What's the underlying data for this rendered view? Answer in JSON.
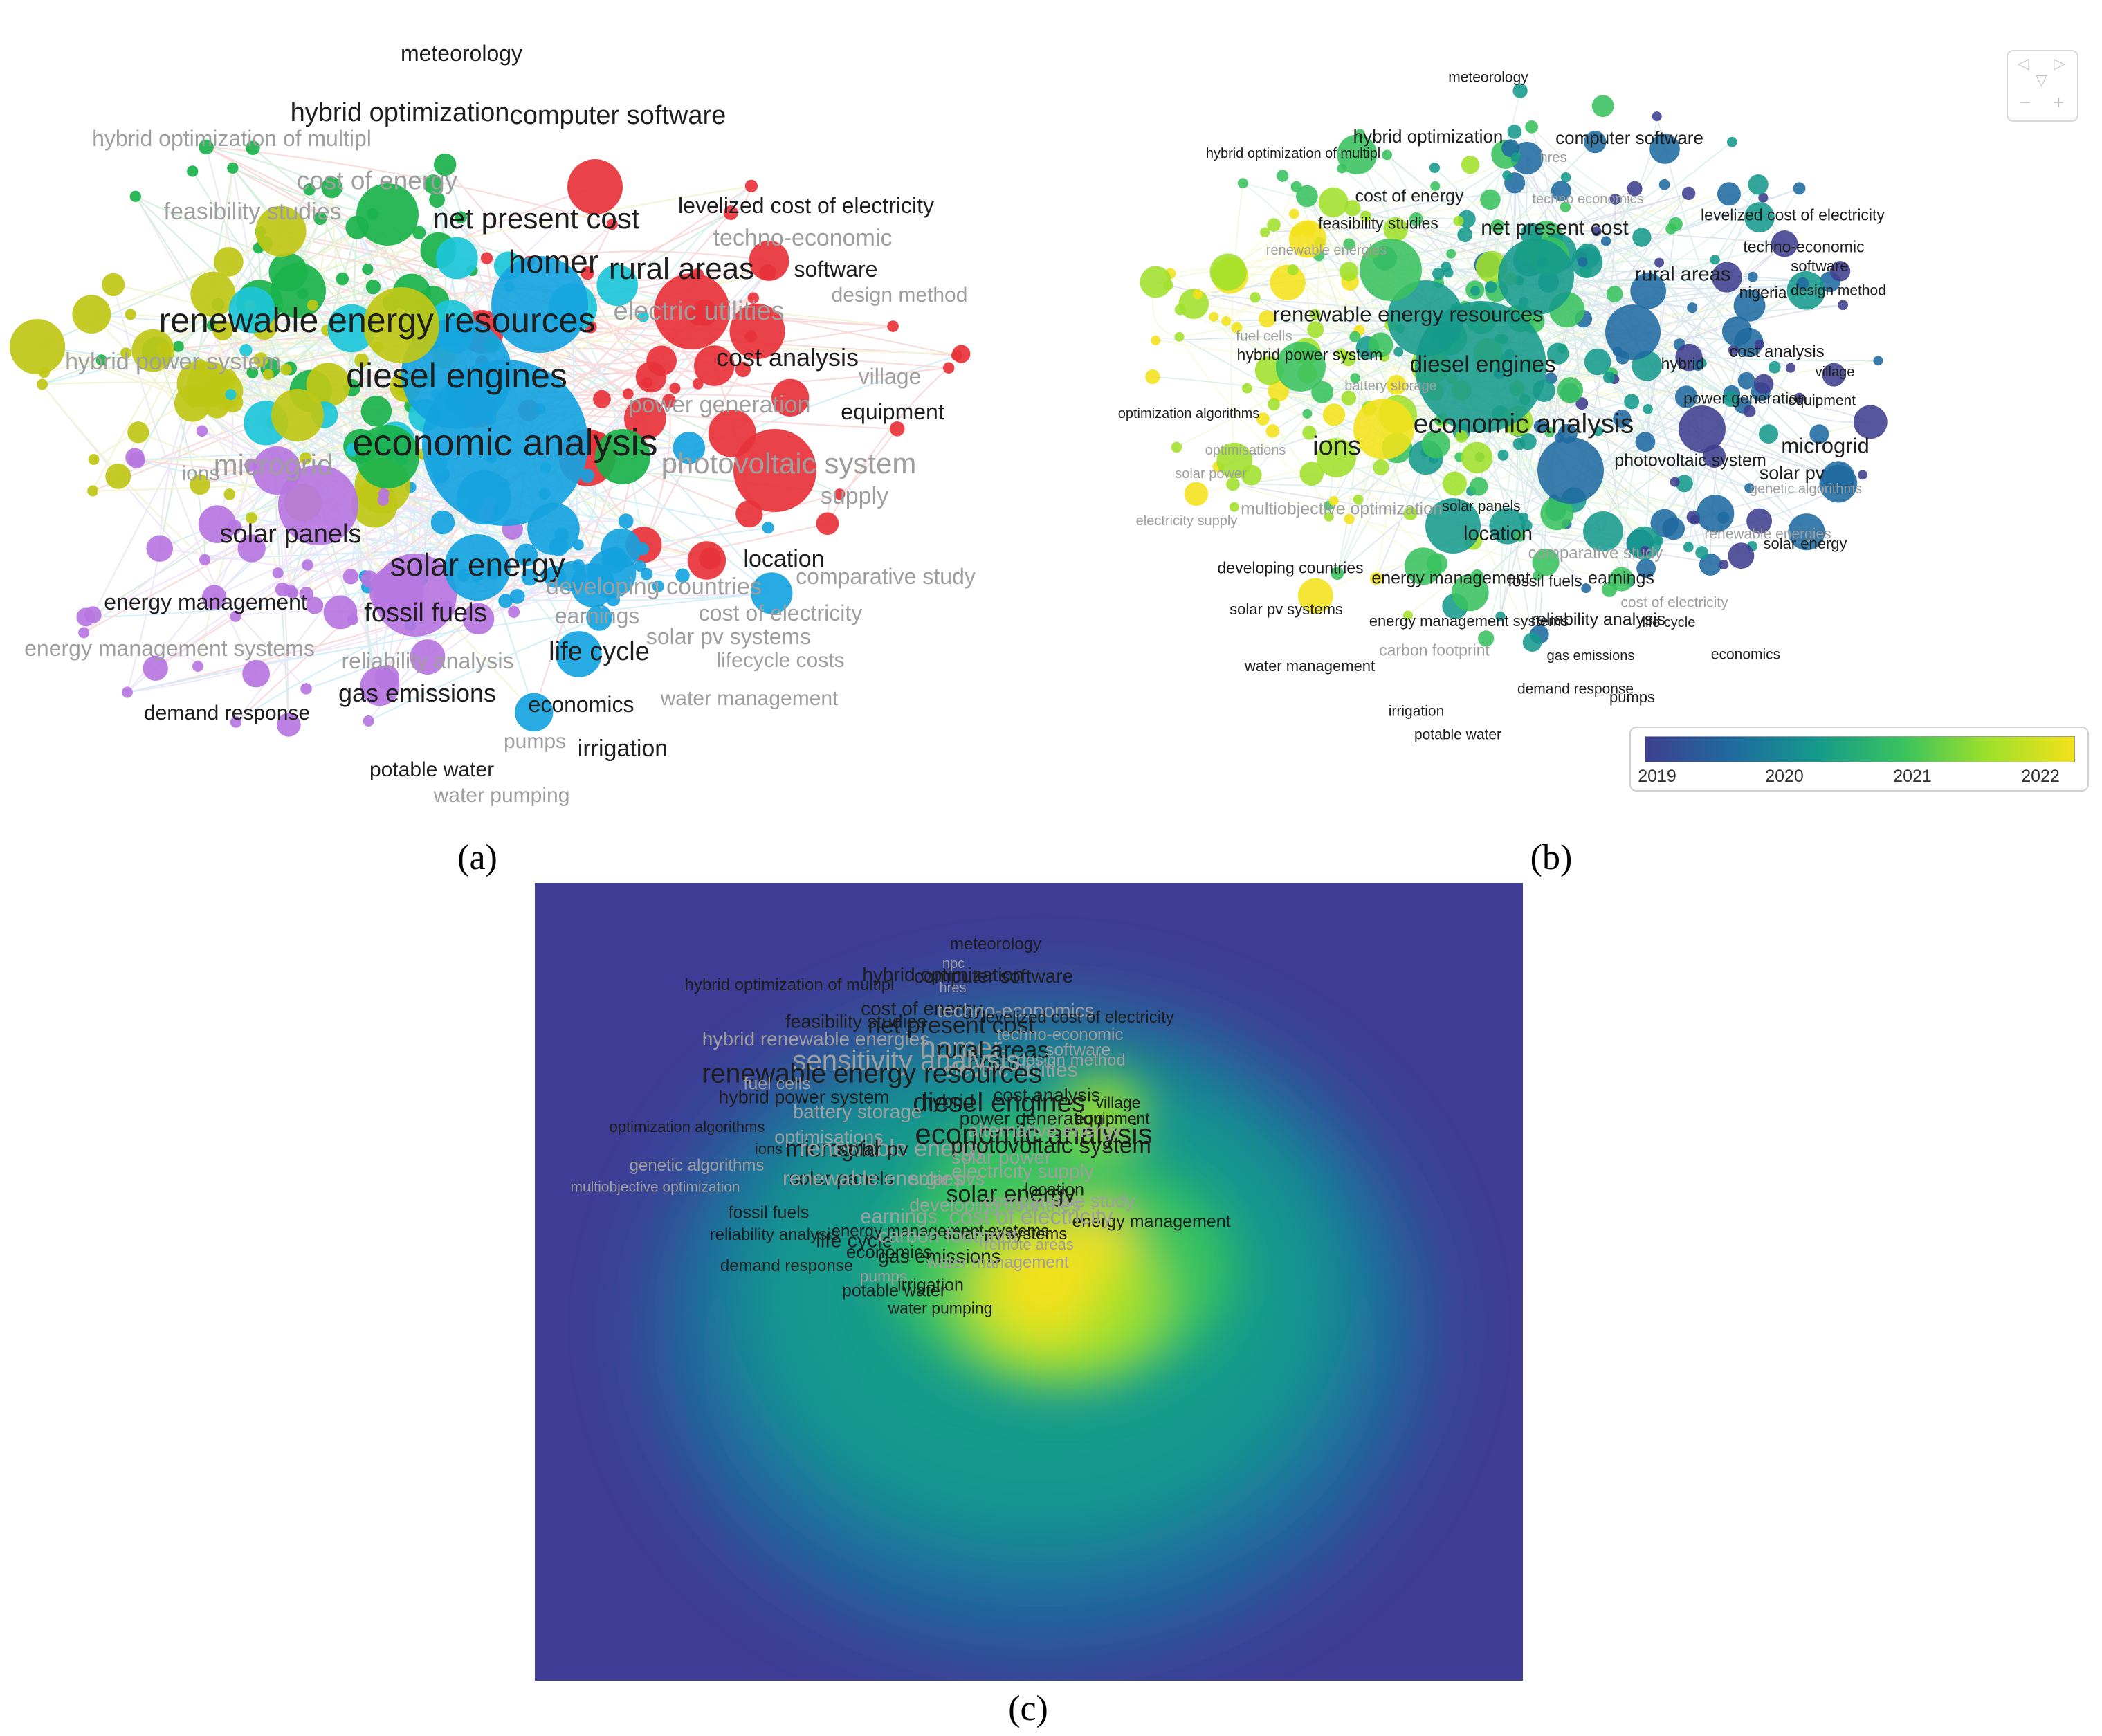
{
  "captions": {
    "a": "(a)",
    "b": "(b)",
    "c": "(c)"
  },
  "colors": {
    "clusters": [
      "#e8323a",
      "#1ab24b",
      "#16a3e0",
      "#bfc716",
      "#b676e0",
      "#1cc6d8"
    ],
    "overlay_scale": [
      "#3f3f8f",
      "#1f6aa0",
      "#169a8c",
      "#39c25e",
      "#9fe02a",
      "#f2e11a"
    ],
    "density_bg": "#3f3d95"
  },
  "legend": {
    "ticks": [
      "2019",
      "2020",
      "2021",
      "2022"
    ]
  },
  "zoom_controls": {
    "glyphs": [
      "◁",
      "▷",
      "▽",
      "−",
      "+"
    ]
  },
  "panel_a_labels": [
    {
      "text": "meteorology",
      "faint": false
    },
    {
      "text": "hybrid optimization",
      "faint": false
    },
    {
      "text": "computer software",
      "faint": false
    },
    {
      "text": "hybrid optimization of multipl",
      "faint": true
    },
    {
      "text": "cost of energy",
      "faint": true
    },
    {
      "text": "feasibility studies",
      "faint": true
    },
    {
      "text": "net present cost",
      "faint": false
    },
    {
      "text": "levelized cost of electricity",
      "faint": false
    },
    {
      "text": "techno-economic",
      "faint": true
    },
    {
      "text": "homer",
      "faint": false
    },
    {
      "text": "rural areas",
      "faint": false
    },
    {
      "text": "software",
      "faint": false
    },
    {
      "text": "design method",
      "faint": true
    },
    {
      "text": "renewable energy resources",
      "faint": false
    },
    {
      "text": "electric utilities",
      "faint": true
    },
    {
      "text": "hybrid power system",
      "faint": true
    },
    {
      "text": "diesel engines",
      "faint": false
    },
    {
      "text": "cost analysis",
      "faint": false
    },
    {
      "text": "village",
      "faint": true
    },
    {
      "text": "equipment",
      "faint": false
    },
    {
      "text": "power generation",
      "faint": true
    },
    {
      "text": "economic analysis",
      "faint": false
    },
    {
      "text": "microgrid",
      "faint": true
    },
    {
      "text": "ions",
      "faint": true
    },
    {
      "text": "photovoltaic system",
      "faint": true
    },
    {
      "text": "supply",
      "faint": true
    },
    {
      "text": "solar panels",
      "faint": false
    },
    {
      "text": "solar energy",
      "faint": false
    },
    {
      "text": "location",
      "faint": false
    },
    {
      "text": "comparative study",
      "faint": true
    },
    {
      "text": "developing countries",
      "faint": true
    },
    {
      "text": "energy management",
      "faint": false
    },
    {
      "text": "fossil fuels",
      "faint": false
    },
    {
      "text": "earnings",
      "faint": true
    },
    {
      "text": "cost of electricity",
      "faint": true
    },
    {
      "text": "solar pv systems",
      "faint": true
    },
    {
      "text": "energy management systems",
      "faint": true
    },
    {
      "text": "reliability analysis",
      "faint": true
    },
    {
      "text": "life cycle",
      "faint": false
    },
    {
      "text": "lifecycle costs",
      "faint": true
    },
    {
      "text": "gas emissions",
      "faint": false
    },
    {
      "text": "economics",
      "faint": false
    },
    {
      "text": "water management",
      "faint": true
    },
    {
      "text": "demand response",
      "faint": false
    },
    {
      "text": "pumps",
      "faint": true
    },
    {
      "text": "irrigation",
      "faint": false
    },
    {
      "text": "potable water",
      "faint": false
    },
    {
      "text": "water pumping",
      "faint": true
    }
  ],
  "panel_b_labels": [
    {
      "text": "meteorology",
      "faint": false
    },
    {
      "text": "hybrid optimization",
      "faint": false
    },
    {
      "text": "computer software",
      "faint": false
    },
    {
      "text": "hybrid optimization of multipl",
      "faint": false
    },
    {
      "text": "hres",
      "faint": true
    },
    {
      "text": "cost of energy",
      "faint": false
    },
    {
      "text": "techno economics",
      "faint": true
    },
    {
      "text": "levelized cost of electricity",
      "faint": false
    },
    {
      "text": "feasibility studies",
      "faint": false
    },
    {
      "text": "net present cost",
      "faint": false
    },
    {
      "text": "techno-economic",
      "faint": false
    },
    {
      "text": "renewable energies",
      "faint": true
    },
    {
      "text": "rural areas",
      "faint": false
    },
    {
      "text": "software",
      "faint": false
    },
    {
      "text": "nigeria",
      "faint": false
    },
    {
      "text": "design method",
      "faint": false
    },
    {
      "text": "renewable energy resources",
      "faint": false
    },
    {
      "text": "fuel cells",
      "faint": true
    },
    {
      "text": "hybrid power system",
      "faint": false
    },
    {
      "text": "diesel engines",
      "faint": false
    },
    {
      "text": "hybrid",
      "faint": false
    },
    {
      "text": "cost analysis",
      "faint": false
    },
    {
      "text": "village",
      "faint": false
    },
    {
      "text": "battery storage",
      "faint": true
    },
    {
      "text": "power generation",
      "faint": false
    },
    {
      "text": "equipment",
      "faint": false
    },
    {
      "text": "optimization algorithms",
      "faint": false
    },
    {
      "text": "economic analysis",
      "faint": false
    },
    {
      "text": "optimisations",
      "faint": true
    },
    {
      "text": "ions",
      "faint": false
    },
    {
      "text": "microgrid",
      "faint": false
    },
    {
      "text": "photovoltaic system",
      "faint": false
    },
    {
      "text": "solar pv",
      "faint": false
    },
    {
      "text": "solar power",
      "faint": true
    },
    {
      "text": "genetic algorithms",
      "faint": true
    },
    {
      "text": "electricity supply",
      "faint": true
    },
    {
      "text": "multiobjective optimization",
      "faint": true
    },
    {
      "text": "solar panels",
      "faint": false
    },
    {
      "text": "renewable energies",
      "faint": true
    },
    {
      "text": "location",
      "faint": false
    },
    {
      "text": "solar energy",
      "faint": false
    },
    {
      "text": "comparative study",
      "faint": true
    },
    {
      "text": "developing countries",
      "faint": false
    },
    {
      "text": "energy management",
      "faint": false
    },
    {
      "text": "fossil fuels",
      "faint": false
    },
    {
      "text": "earnings",
      "faint": false
    },
    {
      "text": "cost of electricity",
      "faint": true
    },
    {
      "text": "solar pv systems",
      "faint": false
    },
    {
      "text": "energy management systems",
      "faint": false
    },
    {
      "text": "reliability analysis",
      "faint": false
    },
    {
      "text": "life cycle",
      "faint": false
    },
    {
      "text": "carbon footprint",
      "faint": true
    },
    {
      "text": "gas emissions",
      "faint": false
    },
    {
      "text": "economics",
      "faint": false
    },
    {
      "text": "water management",
      "faint": false
    },
    {
      "text": "demand response",
      "faint": false
    },
    {
      "text": "pumps",
      "faint": false
    },
    {
      "text": "irrigation",
      "faint": false
    },
    {
      "text": "potable water",
      "faint": false
    },
    {
      "text": "water pumping",
      "faint": false
    }
  ],
  "panel_c_labels": [
    {
      "text": "meteorology",
      "faint": false
    },
    {
      "text": "npc",
      "faint": true
    },
    {
      "text": "hybrid optimization",
      "faint": false
    },
    {
      "text": "computer software",
      "faint": false
    },
    {
      "text": "hybrid optimization of multipl",
      "faint": false
    },
    {
      "text": "hres",
      "faint": true
    },
    {
      "text": "cost of energy",
      "faint": false
    },
    {
      "text": "techno-economics",
      "faint": true
    },
    {
      "text": "feasibility studies",
      "faint": false
    },
    {
      "text": "levelized cost of electricity",
      "faint": false
    },
    {
      "text": "net present cost",
      "faint": false
    },
    {
      "text": "hybrid renewable energies",
      "faint": true
    },
    {
      "text": "techno-economic",
      "faint": true
    },
    {
      "text": "homer",
      "faint": true
    },
    {
      "text": "rural areas",
      "faint": false
    },
    {
      "text": "software",
      "faint": true
    },
    {
      "text": "nigeria",
      "faint": false
    },
    {
      "text": "design method",
      "faint": true
    },
    {
      "text": "sensitivity analysis",
      "faint": true
    },
    {
      "text": "electric utilities",
      "faint": true
    },
    {
      "text": "renewable energy resources",
      "faint": false
    },
    {
      "text": "fuel cells",
      "faint": true
    },
    {
      "text": "hybrid power system",
      "faint": false
    },
    {
      "text": "diesel engines",
      "faint": false
    },
    {
      "text": "hybrid",
      "faint": false
    },
    {
      "text": "cost analysis",
      "faint": false
    },
    {
      "text": "village",
      "faint": false
    },
    {
      "text": "battery storage",
      "faint": true
    },
    {
      "text": "power generation",
      "faint": false
    },
    {
      "text": "equipment",
      "faint": false
    },
    {
      "text": "optimization algorithms",
      "faint": false
    },
    {
      "text": "economic analysis",
      "faint": false
    },
    {
      "text": "alternative energy",
      "faint": true
    },
    {
      "text": "optimisations",
      "faint": true
    },
    {
      "text": "ions",
      "faint": false
    },
    {
      "text": "microgrid",
      "faint": false
    },
    {
      "text": "renewable energy",
      "faint": true
    },
    {
      "text": "solar pv",
      "faint": false
    },
    {
      "text": "photovoltaic system",
      "faint": false
    },
    {
      "text": "solar power",
      "faint": true
    },
    {
      "text": "genetic algorithms",
      "faint": true
    },
    {
      "text": "electricity supply",
      "faint": true
    },
    {
      "text": "solar panels",
      "faint": false
    },
    {
      "text": "renewable energies",
      "faint": true
    },
    {
      "text": "solar pvs",
      "faint": true
    },
    {
      "text": "multiobjective optimization",
      "faint": true
    },
    {
      "text": "solar energy",
      "faint": false
    },
    {
      "text": "location",
      "faint": false
    },
    {
      "text": "comparative study",
      "faint": true
    },
    {
      "text": "developing countries",
      "faint": true
    },
    {
      "text": "energy management",
      "faint": false
    },
    {
      "text": "fossil fuels",
      "faint": false
    },
    {
      "text": "earnings",
      "faint": true
    },
    {
      "text": "cost of electricity",
      "faint": true
    },
    {
      "text": "solar pv systems",
      "faint": false
    },
    {
      "text": "energy management systems",
      "faint": false
    },
    {
      "text": "reliability analysis",
      "faint": false
    },
    {
      "text": "life cycle",
      "faint": false
    },
    {
      "text": "carbon footprint",
      "faint": true
    },
    {
      "text": "remote areas",
      "faint": true
    },
    {
      "text": "gas emissions",
      "faint": false
    },
    {
      "text": "economics",
      "faint": false
    },
    {
      "text": "water management",
      "faint": true
    },
    {
      "text": "demand response",
      "faint": false
    },
    {
      "text": "pumps",
      "faint": true
    },
    {
      "text": "irrigation",
      "faint": false
    },
    {
      "text": "potable water",
      "faint": false
    },
    {
      "text": "water pumping",
      "faint": false
    }
  ]
}
